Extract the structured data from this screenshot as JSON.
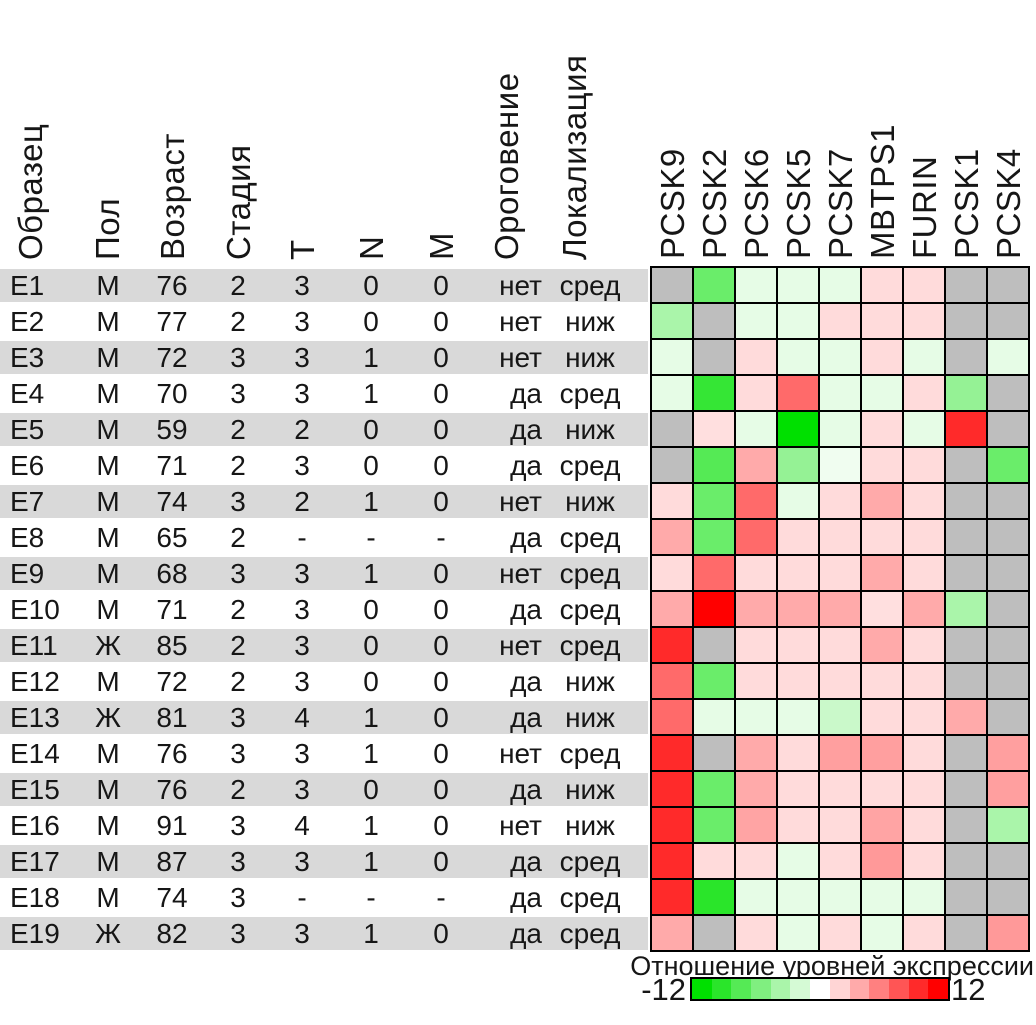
{
  "table": {
    "columns": [
      "Образец",
      "Пол",
      "Возраст",
      "Стадия",
      "Т",
      "N",
      "М",
      "Ороговение",
      "Локализация"
    ],
    "rows": [
      [
        "E1",
        "М",
        "76",
        "2",
        "3",
        "0",
        "0",
        "нет",
        "сред"
      ],
      [
        "E2",
        "М",
        "77",
        "2",
        "3",
        "0",
        "0",
        "нет",
        "ниж"
      ],
      [
        "E3",
        "М",
        "72",
        "3",
        "3",
        "1",
        "0",
        "нет",
        "ниж"
      ],
      [
        "E4",
        "М",
        "70",
        "3",
        "3",
        "1",
        "0",
        "да",
        "сред"
      ],
      [
        "E5",
        "М",
        "59",
        "2",
        "2",
        "0",
        "0",
        "да",
        "ниж"
      ],
      [
        "E6",
        "М",
        "71",
        "2",
        "3",
        "0",
        "0",
        "да",
        "сред"
      ],
      [
        "E7",
        "М",
        "74",
        "3",
        "2",
        "1",
        "0",
        "нет",
        "ниж"
      ],
      [
        "E8",
        "М",
        "65",
        "2",
        "-",
        "-",
        "-",
        "да",
        "сред"
      ],
      [
        "E9",
        "М",
        "68",
        "3",
        "3",
        "1",
        "0",
        "нет",
        "сред"
      ],
      [
        "E10",
        "М",
        "71",
        "2",
        "3",
        "0",
        "0",
        "да",
        "сред"
      ],
      [
        "E11",
        "Ж",
        "85",
        "2",
        "3",
        "0",
        "0",
        "нет",
        "сред"
      ],
      [
        "E12",
        "М",
        "72",
        "2",
        "3",
        "0",
        "0",
        "да",
        "ниж"
      ],
      [
        "E13",
        "Ж",
        "81",
        "3",
        "4",
        "1",
        "0",
        "да",
        "ниж"
      ],
      [
        "E14",
        "М",
        "76",
        "3",
        "3",
        "1",
        "0",
        "нет",
        "сред"
      ],
      [
        "E15",
        "М",
        "76",
        "2",
        "3",
        "0",
        "0",
        "да",
        "ниж"
      ],
      [
        "E16",
        "М",
        "91",
        "3",
        "4",
        "1",
        "0",
        "нет",
        "ниж"
      ],
      [
        "E17",
        "М",
        "87",
        "3",
        "3",
        "1",
        "0",
        "да",
        "сред"
      ],
      [
        "E18",
        "М",
        "74",
        "3",
        "-",
        "-",
        "-",
        "да",
        "сред"
      ],
      [
        "E19",
        "Ж",
        "82",
        "3",
        "3",
        "1",
        "0",
        "да",
        "сред"
      ]
    ]
  },
  "chart_data": {
    "type": "heatmap",
    "title": "Отношение уровней экспрессии",
    "columns": [
      "PCSK9",
      "PCSK2",
      "PCSK6",
      "PCSK5",
      "PCSK7",
      "MBTPS1",
      "FURIN",
      "PCSK1",
      "PCSK4"
    ],
    "rows": [
      "E1",
      "E2",
      "E3",
      "E4",
      "E5",
      "E6",
      "E7",
      "E8",
      "E9",
      "E10",
      "E11",
      "E12",
      "E13",
      "E14",
      "E15",
      "E16",
      "E17",
      "E18",
      "E19"
    ],
    "values": [
      [
        null,
        -7,
        -1.2,
        -1.2,
        -1.2,
        1.7,
        1.7,
        null,
        null
      ],
      [
        -4,
        null,
        -1.2,
        -1.2,
        1.7,
        1.7,
        1.7,
        null,
        null
      ],
      [
        -1.2,
        null,
        1.7,
        -1.2,
        -1.2,
        1.7,
        -1.2,
        null,
        -1.2
      ],
      [
        -1.2,
        -9.5,
        1.7,
        7,
        -1.2,
        -1.2,
        1.7,
        -5,
        null
      ],
      [
        null,
        1.5,
        -1.2,
        -12,
        -1.2,
        1.7,
        -1.2,
        10,
        null
      ],
      [
        null,
        -8,
        4,
        -5,
        -0.7,
        1.7,
        1.7,
        null,
        -7
      ],
      [
        1.7,
        -7,
        7,
        -1.2,
        1.7,
        4,
        1.7,
        null,
        null
      ],
      [
        4,
        -7,
        7,
        1.7,
        1.7,
        1.7,
        1.7,
        null,
        null
      ],
      [
        1.7,
        7,
        1.7,
        1.7,
        1.7,
        4,
        1.7,
        null,
        null
      ],
      [
        4,
        12,
        4,
        4,
        4,
        1.5,
        4,
        -4,
        null
      ],
      [
        10,
        null,
        1.7,
        1.7,
        1.7,
        4,
        1.7,
        null,
        null
      ],
      [
        7,
        -7,
        1.7,
        1.7,
        1.7,
        1.7,
        1.7,
        null,
        null
      ],
      [
        7,
        -1.2,
        -1.2,
        -1.2,
        -2.5,
        1.7,
        1.7,
        4,
        null
      ],
      [
        10,
        null,
        4,
        1.7,
        4.5,
        4.5,
        1.7,
        null,
        4.5
      ],
      [
        10,
        -7,
        4,
        1.7,
        1.7,
        1.7,
        1.7,
        null,
        4.5
      ],
      [
        10,
        -7,
        4.3,
        1.7,
        1.7,
        4.3,
        1.7,
        null,
        -4
      ],
      [
        10,
        1.7,
        1.7,
        -1.2,
        1.7,
        4.8,
        1.7,
        null,
        null
      ],
      [
        10,
        -10,
        -1.2,
        -1.2,
        -1.2,
        -1.2,
        -1.2,
        null,
        null
      ],
      [
        4,
        null,
        1.7,
        -1.2,
        1.7,
        -1.2,
        1.7,
        null,
        4.8
      ]
    ],
    "value_range": [
      -12,
      12
    ],
    "missing_value": "gray",
    "legend_position": "bottom-right"
  },
  "legend": {
    "title": "Отношение уровней экспрессии",
    "min_label": "-12",
    "max_label": "12"
  },
  "colors": {
    "negative_extreme": "#00E000",
    "positive_extreme": "#FF0000",
    "neutral": "#FFFFFF",
    "missing_cell": "#BEBEBE",
    "row_band": "#D9D9D9",
    "grid_line": "#000000"
  }
}
